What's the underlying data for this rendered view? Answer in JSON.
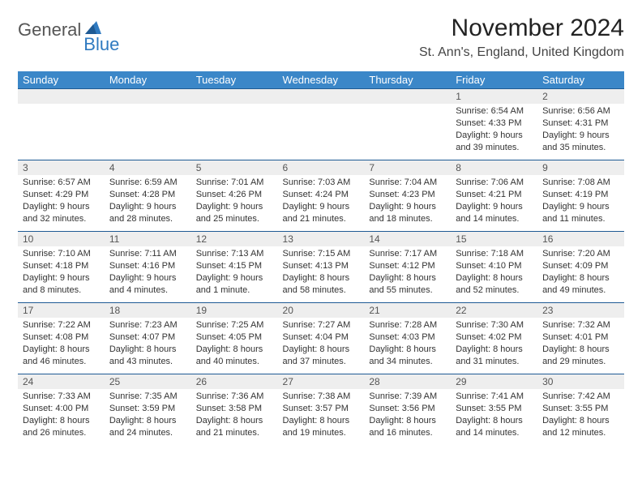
{
  "logo": {
    "text1": "General",
    "text2": "Blue",
    "triangle_color": "#2f7ac0"
  },
  "header": {
    "month_year": "November 2024",
    "location": "St. Ann's, England, United Kingdom"
  },
  "colors": {
    "header_bg": "#3b87c8",
    "daynum_bg": "#eeeeee",
    "daynum_border": "#1e5a94",
    "text": "#333333"
  },
  "day_headers": [
    "Sunday",
    "Monday",
    "Tuesday",
    "Wednesday",
    "Thursday",
    "Friday",
    "Saturday"
  ],
  "weeks": [
    [
      null,
      null,
      null,
      null,
      null,
      {
        "n": "1",
        "sr": "Sunrise: 6:54 AM",
        "ss": "Sunset: 4:33 PM",
        "d1": "Daylight: 9 hours",
        "d2": "and 39 minutes."
      },
      {
        "n": "2",
        "sr": "Sunrise: 6:56 AM",
        "ss": "Sunset: 4:31 PM",
        "d1": "Daylight: 9 hours",
        "d2": "and 35 minutes."
      }
    ],
    [
      {
        "n": "3",
        "sr": "Sunrise: 6:57 AM",
        "ss": "Sunset: 4:29 PM",
        "d1": "Daylight: 9 hours",
        "d2": "and 32 minutes."
      },
      {
        "n": "4",
        "sr": "Sunrise: 6:59 AM",
        "ss": "Sunset: 4:28 PM",
        "d1": "Daylight: 9 hours",
        "d2": "and 28 minutes."
      },
      {
        "n": "5",
        "sr": "Sunrise: 7:01 AM",
        "ss": "Sunset: 4:26 PM",
        "d1": "Daylight: 9 hours",
        "d2": "and 25 minutes."
      },
      {
        "n": "6",
        "sr": "Sunrise: 7:03 AM",
        "ss": "Sunset: 4:24 PM",
        "d1": "Daylight: 9 hours",
        "d2": "and 21 minutes."
      },
      {
        "n": "7",
        "sr": "Sunrise: 7:04 AM",
        "ss": "Sunset: 4:23 PM",
        "d1": "Daylight: 9 hours",
        "d2": "and 18 minutes."
      },
      {
        "n": "8",
        "sr": "Sunrise: 7:06 AM",
        "ss": "Sunset: 4:21 PM",
        "d1": "Daylight: 9 hours",
        "d2": "and 14 minutes."
      },
      {
        "n": "9",
        "sr": "Sunrise: 7:08 AM",
        "ss": "Sunset: 4:19 PM",
        "d1": "Daylight: 9 hours",
        "d2": "and 11 minutes."
      }
    ],
    [
      {
        "n": "10",
        "sr": "Sunrise: 7:10 AM",
        "ss": "Sunset: 4:18 PM",
        "d1": "Daylight: 9 hours",
        "d2": "and 8 minutes."
      },
      {
        "n": "11",
        "sr": "Sunrise: 7:11 AM",
        "ss": "Sunset: 4:16 PM",
        "d1": "Daylight: 9 hours",
        "d2": "and 4 minutes."
      },
      {
        "n": "12",
        "sr": "Sunrise: 7:13 AM",
        "ss": "Sunset: 4:15 PM",
        "d1": "Daylight: 9 hours",
        "d2": "and 1 minute."
      },
      {
        "n": "13",
        "sr": "Sunrise: 7:15 AM",
        "ss": "Sunset: 4:13 PM",
        "d1": "Daylight: 8 hours",
        "d2": "and 58 minutes."
      },
      {
        "n": "14",
        "sr": "Sunrise: 7:17 AM",
        "ss": "Sunset: 4:12 PM",
        "d1": "Daylight: 8 hours",
        "d2": "and 55 minutes."
      },
      {
        "n": "15",
        "sr": "Sunrise: 7:18 AM",
        "ss": "Sunset: 4:10 PM",
        "d1": "Daylight: 8 hours",
        "d2": "and 52 minutes."
      },
      {
        "n": "16",
        "sr": "Sunrise: 7:20 AM",
        "ss": "Sunset: 4:09 PM",
        "d1": "Daylight: 8 hours",
        "d2": "and 49 minutes."
      }
    ],
    [
      {
        "n": "17",
        "sr": "Sunrise: 7:22 AM",
        "ss": "Sunset: 4:08 PM",
        "d1": "Daylight: 8 hours",
        "d2": "and 46 minutes."
      },
      {
        "n": "18",
        "sr": "Sunrise: 7:23 AM",
        "ss": "Sunset: 4:07 PM",
        "d1": "Daylight: 8 hours",
        "d2": "and 43 minutes."
      },
      {
        "n": "19",
        "sr": "Sunrise: 7:25 AM",
        "ss": "Sunset: 4:05 PM",
        "d1": "Daylight: 8 hours",
        "d2": "and 40 minutes."
      },
      {
        "n": "20",
        "sr": "Sunrise: 7:27 AM",
        "ss": "Sunset: 4:04 PM",
        "d1": "Daylight: 8 hours",
        "d2": "and 37 minutes."
      },
      {
        "n": "21",
        "sr": "Sunrise: 7:28 AM",
        "ss": "Sunset: 4:03 PM",
        "d1": "Daylight: 8 hours",
        "d2": "and 34 minutes."
      },
      {
        "n": "22",
        "sr": "Sunrise: 7:30 AM",
        "ss": "Sunset: 4:02 PM",
        "d1": "Daylight: 8 hours",
        "d2": "and 31 minutes."
      },
      {
        "n": "23",
        "sr": "Sunrise: 7:32 AM",
        "ss": "Sunset: 4:01 PM",
        "d1": "Daylight: 8 hours",
        "d2": "and 29 minutes."
      }
    ],
    [
      {
        "n": "24",
        "sr": "Sunrise: 7:33 AM",
        "ss": "Sunset: 4:00 PM",
        "d1": "Daylight: 8 hours",
        "d2": "and 26 minutes."
      },
      {
        "n": "25",
        "sr": "Sunrise: 7:35 AM",
        "ss": "Sunset: 3:59 PM",
        "d1": "Daylight: 8 hours",
        "d2": "and 24 minutes."
      },
      {
        "n": "26",
        "sr": "Sunrise: 7:36 AM",
        "ss": "Sunset: 3:58 PM",
        "d1": "Daylight: 8 hours",
        "d2": "and 21 minutes."
      },
      {
        "n": "27",
        "sr": "Sunrise: 7:38 AM",
        "ss": "Sunset: 3:57 PM",
        "d1": "Daylight: 8 hours",
        "d2": "and 19 minutes."
      },
      {
        "n": "28",
        "sr": "Sunrise: 7:39 AM",
        "ss": "Sunset: 3:56 PM",
        "d1": "Daylight: 8 hours",
        "d2": "and 16 minutes."
      },
      {
        "n": "29",
        "sr": "Sunrise: 7:41 AM",
        "ss": "Sunset: 3:55 PM",
        "d1": "Daylight: 8 hours",
        "d2": "and 14 minutes."
      },
      {
        "n": "30",
        "sr": "Sunrise: 7:42 AM",
        "ss": "Sunset: 3:55 PM",
        "d1": "Daylight: 8 hours",
        "d2": "and 12 minutes."
      }
    ]
  ]
}
